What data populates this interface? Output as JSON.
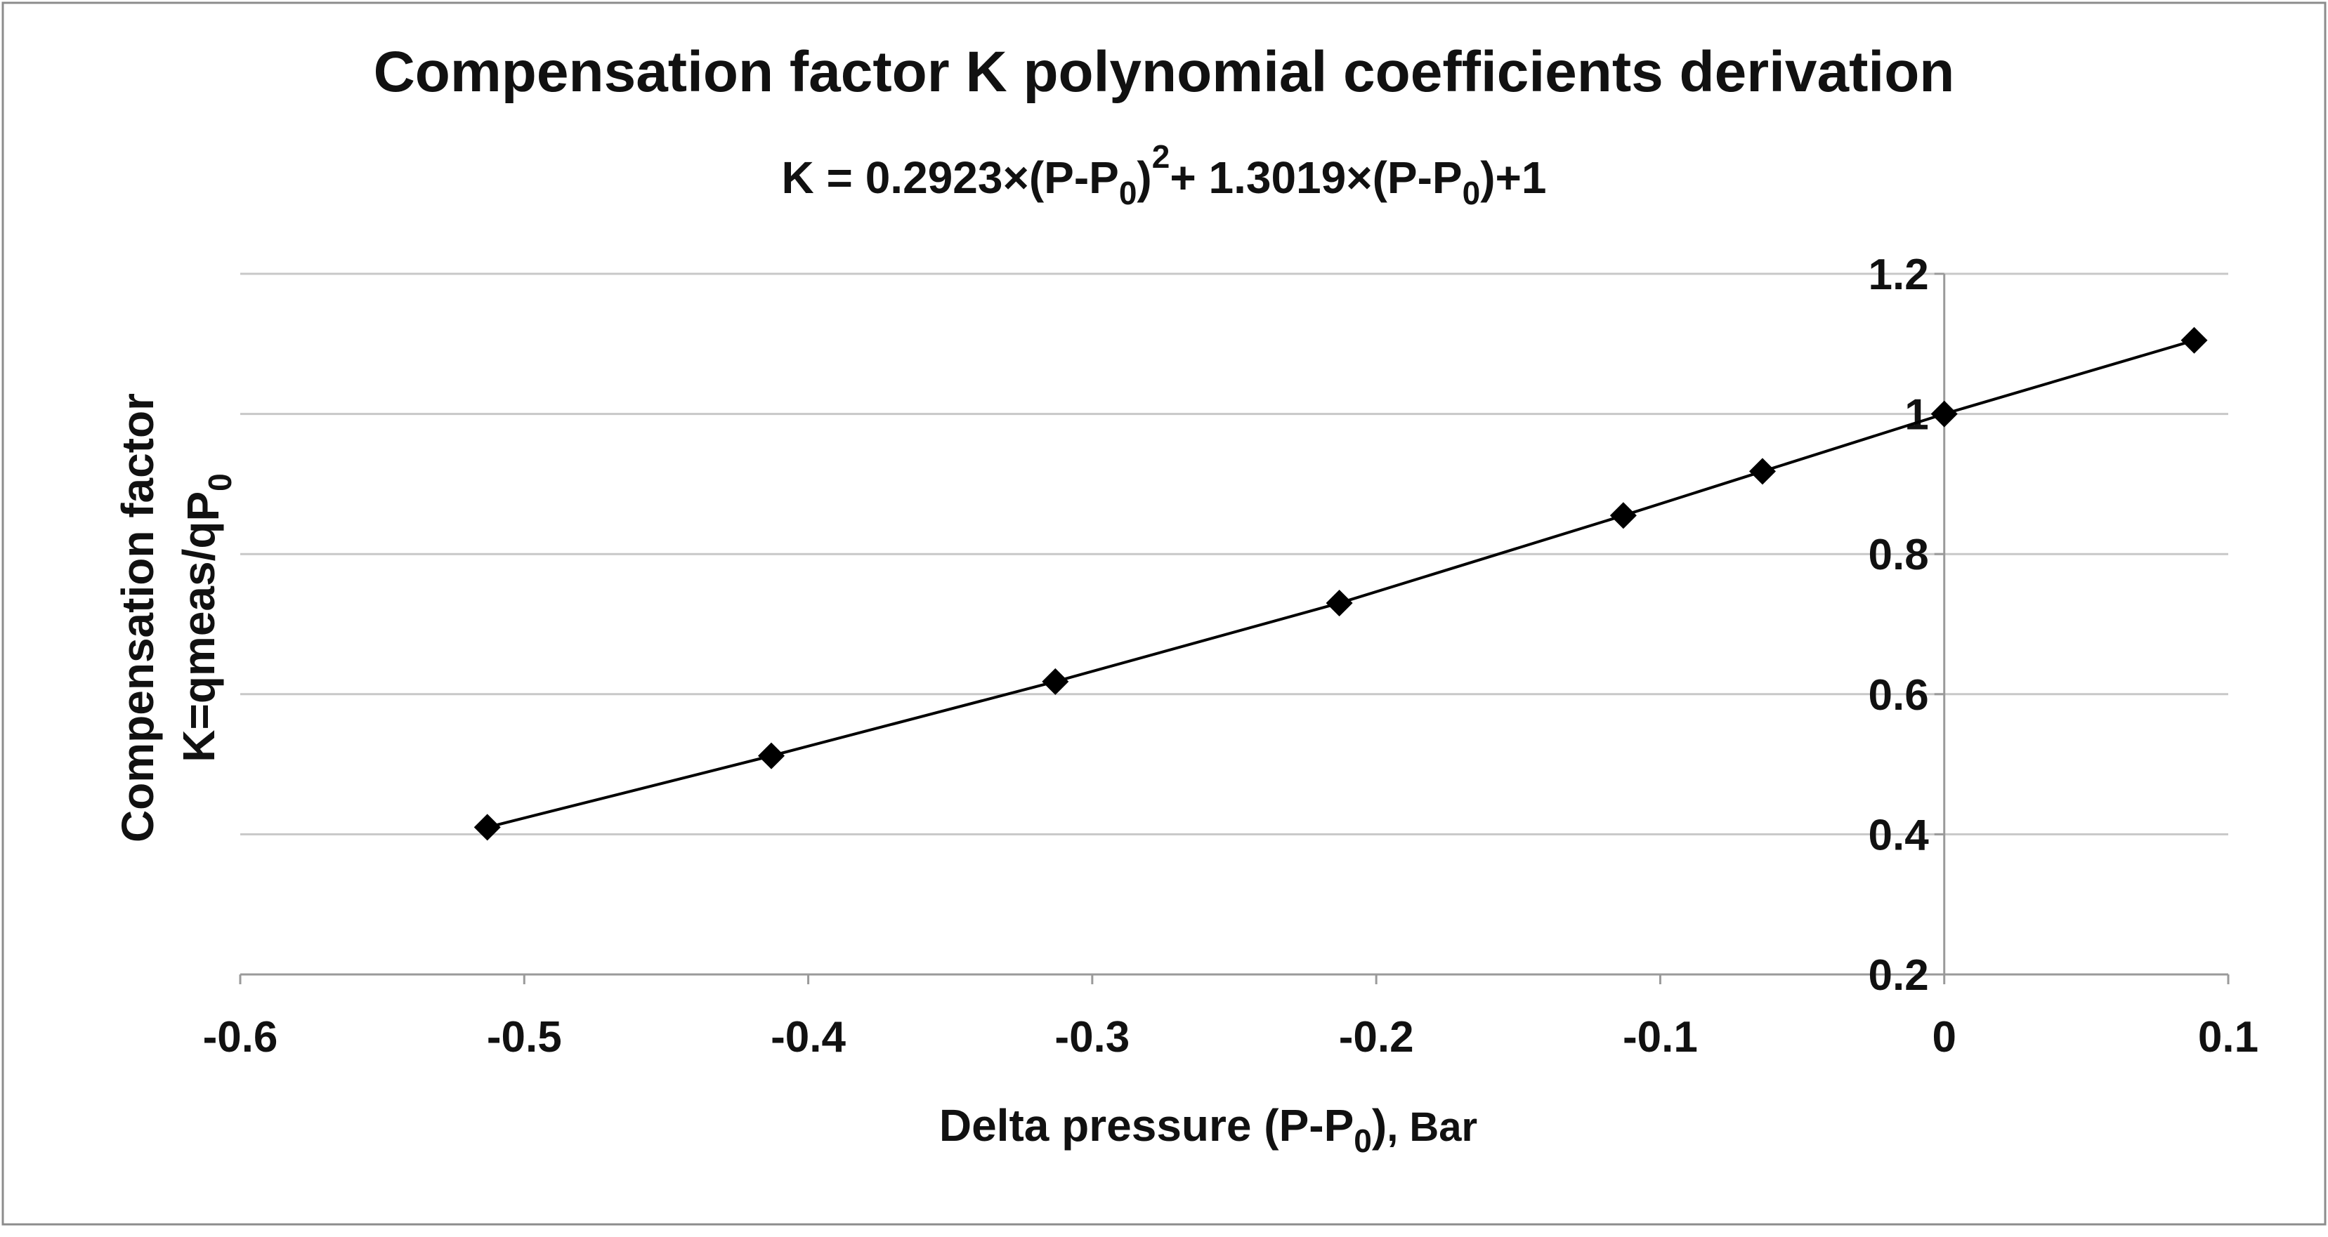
{
  "chart_data": {
    "type": "line",
    "title": "Compensation factor K polynomial coefficients derivation",
    "equation": {
      "lhs": "K = 0.2923×(P-P",
      "sub0": "0",
      "mid1": ")",
      "sup": "2",
      "mid2": "+ 1.3019×(P-P",
      "sub1": "0",
      "end": ")+1"
    },
    "xlabel": {
      "main": "Delta pressure (P-P",
      "sub": "0",
      "close": ")",
      "unit": ", Bar"
    },
    "ylabel": {
      "line1": "Compensation factor",
      "line2": "K=qmeas/q",
      "p": "P",
      "sub": "0"
    },
    "xlim": [
      -0.6,
      0.1
    ],
    "ylim": [
      0.2,
      1.2
    ],
    "xticks": [
      "-0.6",
      "-0.5",
      "-0.4",
      "-0.3",
      "-0.2",
      "-0.1",
      "0",
      "0.1"
    ],
    "yticks": [
      "0.2",
      "0.4",
      "0.6",
      "0.8",
      "1",
      "1.2"
    ],
    "xtick_values": [
      -0.6,
      -0.5,
      -0.4,
      -0.3,
      -0.2,
      -0.1,
      0,
      0.1
    ],
    "ytick_values": [
      0.2,
      0.4,
      0.6,
      0.8,
      1.0,
      1.2
    ],
    "grid": true,
    "marker": "diamond",
    "series": [
      {
        "name": "K",
        "x": [
          -0.513,
          -0.413,
          -0.313,
          -0.213,
          -0.113,
          -0.064,
          0,
          0.088
        ],
        "y": [
          0.41,
          0.512,
          0.618,
          0.73,
          0.855,
          0.918,
          1.0,
          1.105
        ]
      }
    ],
    "colors": {
      "line": "#000000",
      "grid": "#c8c8c8",
      "axis": "#9a9a9a",
      "frame": "#8c8c8c"
    }
  }
}
